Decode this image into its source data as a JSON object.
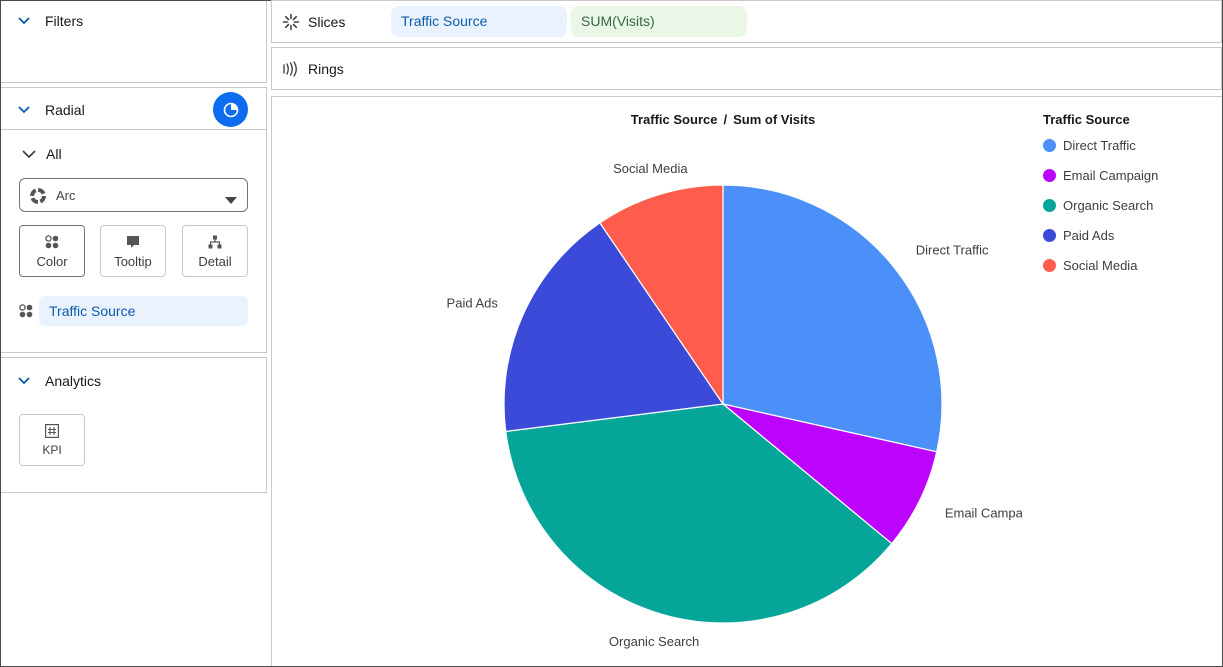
{
  "left_panel": {
    "filters": {
      "title": "Filters"
    },
    "radial": {
      "title": "Radial",
      "group_label": "All",
      "mark_type": "Arc",
      "encodings": [
        {
          "label": "Color",
          "icon": "color-dots-icon",
          "active": true
        },
        {
          "label": "Tooltip",
          "icon": "tooltip-icon",
          "active": false
        },
        {
          "label": "Detail",
          "icon": "hierarchy-icon",
          "active": false
        }
      ],
      "color_field": "Traffic Source"
    },
    "analytics": {
      "title": "Analytics",
      "kpi_label": "KPI"
    }
  },
  "shelves": {
    "slices": {
      "label": "Slices",
      "dimension": "Traffic Source",
      "measure": "SUM(Visits)"
    },
    "rings": {
      "label": "Rings"
    }
  },
  "chart_title": {
    "dimension": "Traffic Source",
    "separator": "/",
    "measure": "Sum of Visits"
  },
  "colors": {
    "accent": "#0b6cf0",
    "dimension_pill": "#eaf2fe",
    "measure_pill": "#ebf7e6"
  },
  "chart_data": {
    "type": "pie",
    "title": "Traffic Source / Sum of Visits",
    "legend_title": "Traffic Source",
    "legend_position": "top-right",
    "categories": [
      "Direct Traffic",
      "Email Campaign",
      "Organic Search",
      "Paid Ads",
      "Social Media"
    ],
    "values": [
      28.5,
      7.5,
      37.0,
      17.5,
      9.5
    ],
    "colors": [
      "#4a90f8",
      "#bc04fd",
      "#06a59a",
      "#3b4ad9",
      "#fe5c4c"
    ]
  }
}
